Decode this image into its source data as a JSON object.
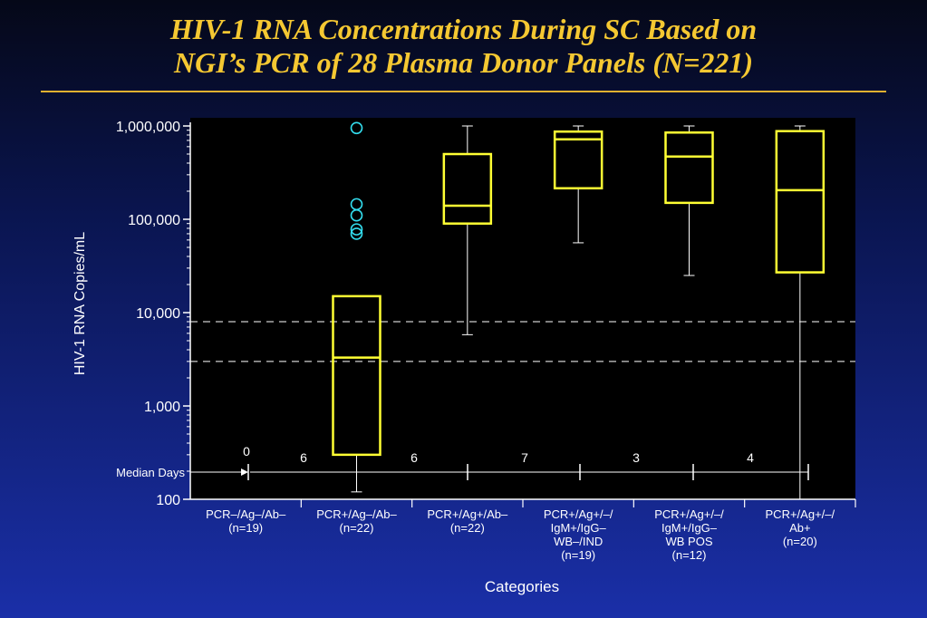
{
  "slide": {
    "title_line1": "HIV-1 RNA Concentrations During SC Based on",
    "title_line2": "NGI’s PCR of 28 Plasma Donor Panels (N=221)"
  },
  "chart_data": {
    "type": "box",
    "ylabel": "HIV-1 RNA Copies/mL",
    "xlabel": "Categories",
    "yscale": "log",
    "ylim": [
      100,
      1000000
    ],
    "yticks": [
      {
        "value": 1000000,
        "label": "1,000,000"
      },
      {
        "value": 100000,
        "label": "100,000"
      },
      {
        "value": 10000,
        "label": "10,000"
      },
      {
        "value": 1000,
        "label": "1,000"
      },
      {
        "value": 100,
        "label": "100"
      }
    ],
    "reference_lines": [
      8000,
      3000
    ],
    "colors": {
      "plot_bg": "#000000",
      "box": "#ffff33",
      "whisker": "#ffffff",
      "outlier": "#33ddee",
      "text": "#ffffff"
    },
    "categories": [
      {
        "label_lines": [
          "PCR–/Ag–/Ab–",
          "(n=19)"
        ],
        "box": null
      },
      {
        "label_lines": [
          "PCR+/Ag–/Ab–",
          "(n=22)"
        ],
        "box": {
          "whisker_low": 120,
          "q1": 300,
          "median": 3300,
          "q3": 15000,
          "whisker_high": 15000
        },
        "outliers": [
          950000,
          145000,
          110000,
          78000,
          70000
        ]
      },
      {
        "label_lines": [
          "PCR+/Ag+/Ab–",
          "(n=22)"
        ],
        "box": {
          "whisker_low": 5800,
          "q1": 90000,
          "median": 140000,
          "q3": 500000,
          "whisker_high": 1000000
        },
        "outliers": []
      },
      {
        "label_lines": [
          "PCR+/Ag+/–/",
          "IgM+/IgG–",
          "WB–/IND",
          "(n=19)"
        ],
        "box": {
          "whisker_low": 56000,
          "q1": 215000,
          "median": 720000,
          "q3": 870000,
          "whisker_high": 1000000
        },
        "outliers": []
      },
      {
        "label_lines": [
          "PCR+/Ag+/–/",
          "IgM+/IgG–",
          "WB POS",
          "(n=12)"
        ],
        "box": {
          "whisker_low": 25000,
          "q1": 150000,
          "median": 470000,
          "q3": 850000,
          "whisker_high": 1000000
        },
        "outliers": []
      },
      {
        "label_lines": [
          "PCR+/Ag+/–/",
          "Ab+",
          "(n=20)"
        ],
        "box": {
          "whisker_low": 100,
          "q1": 27000,
          "median": 205000,
          "q3": 880000,
          "whisker_high": 1000000
        },
        "outliers": []
      }
    ],
    "median_days": {
      "label": "Median Days",
      "first_value": "0",
      "interval_values": [
        "6",
        "6",
        "7",
        "3",
        "4"
      ]
    }
  }
}
